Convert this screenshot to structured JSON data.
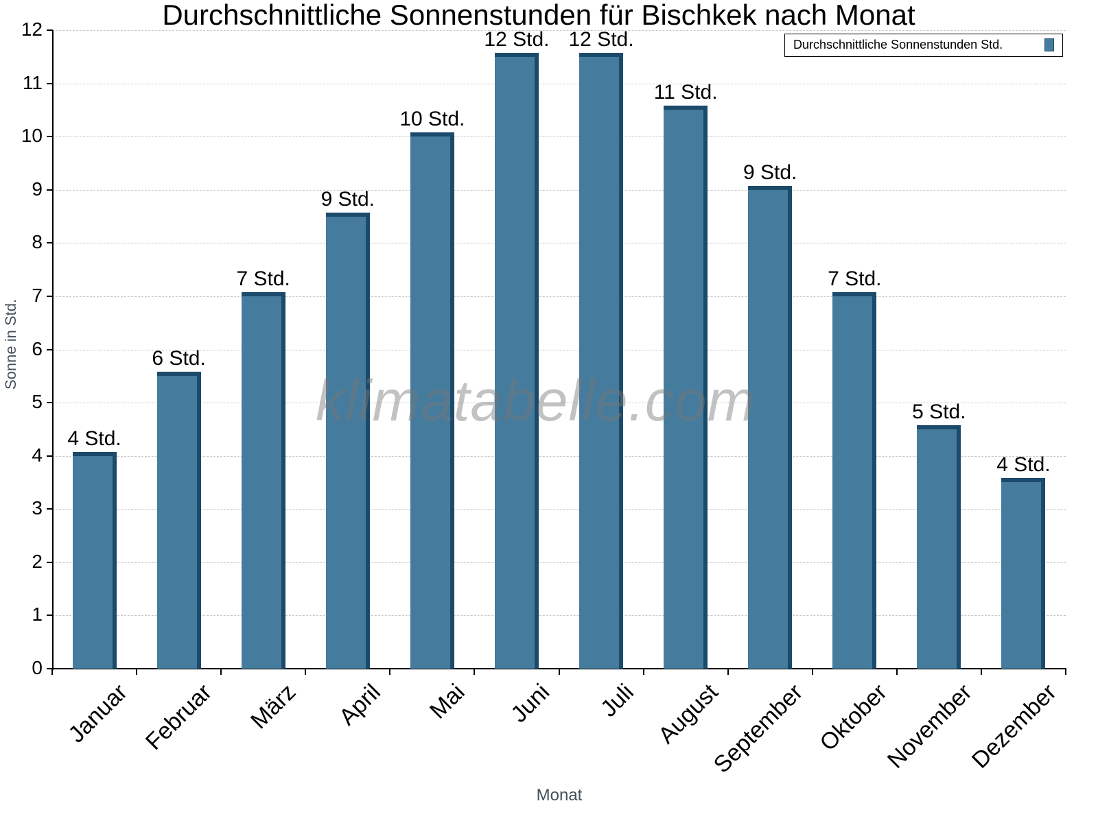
{
  "chart_data": {
    "type": "bar",
    "title": "Durchschnittliche Sonnenstunden für Bischkek nach Monat",
    "xlabel": "Monat",
    "ylabel": "Sonne in Std.",
    "ylim": [
      0,
      12
    ],
    "yticks": [
      0,
      1,
      2,
      3,
      4,
      5,
      6,
      7,
      8,
      9,
      10,
      11,
      12
    ],
    "grid": true,
    "legend_position": "top-right",
    "categories": [
      "Januar",
      "Februar",
      "März",
      "April",
      "Mai",
      "Juni",
      "Juli",
      "August",
      "September",
      "Oktober",
      "November",
      "Dezember"
    ],
    "series": [
      {
        "name": "Durchschnittliche Sonnenstunden Std.",
        "color": "#457b9d",
        "values": [
          4,
          5.5,
          7,
          8.5,
          10,
          11.5,
          11.5,
          10.5,
          9,
          7,
          4.5,
          3.5
        ],
        "data_labels": [
          "4 Std.",
          "6 Std.",
          "7 Std.",
          "9 Std.",
          "10 Std.",
          "12 Std.",
          "12 Std.",
          "11 Std.",
          "9 Std.",
          "7 Std.",
          "5 Std.",
          "4 Std."
        ]
      }
    ],
    "watermark": "klimatabelle.com"
  }
}
